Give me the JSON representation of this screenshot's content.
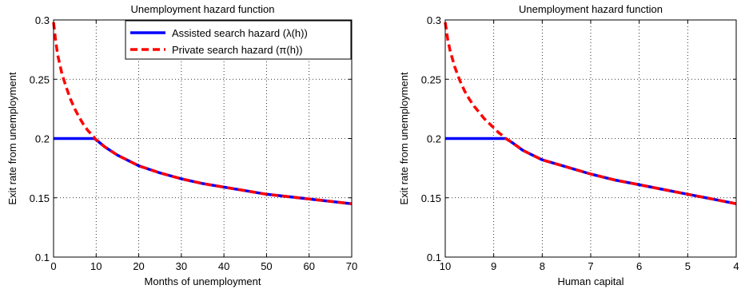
{
  "chart_data": [
    {
      "type": "line",
      "title": "Unemployment hazard function",
      "xlabel": "Months of unemployment",
      "ylabel": "Exit rate from unemployment",
      "xlim": [
        0,
        70
      ],
      "ylim": [
        0.1,
        0.3
      ],
      "xticks": [
        "0",
        "10",
        "20",
        "30",
        "40",
        "50",
        "60",
        "70"
      ],
      "yticks": [
        "0.1",
        "0.15",
        "0.2",
        "0.25",
        "0.3"
      ],
      "x_reversed": false,
      "grid": true,
      "legend_position": "top-right",
      "series": [
        {
          "name": "Assisted search hazard (λ(h))",
          "color": "#0000ff",
          "style": "solid",
          "x": [
            0,
            2,
            4,
            6,
            8,
            9.5,
            10,
            12,
            15,
            20,
            25,
            30,
            35,
            40,
            45,
            50,
            55,
            60,
            65,
            70
          ],
          "y": [
            0.2,
            0.2,
            0.2,
            0.2,
            0.2,
            0.2,
            0.199,
            0.193,
            0.186,
            0.177,
            0.171,
            0.166,
            0.162,
            0.159,
            0.156,
            0.153,
            0.151,
            0.149,
            0.147,
            0.145
          ]
        },
        {
          "name": "Private search hazard (π(h))",
          "color": "#ff0000",
          "style": "dashed",
          "x": [
            0,
            0.5,
            1,
            2,
            3,
            4,
            5,
            6,
            7,
            8,
            9,
            10,
            12,
            15,
            20,
            25,
            30,
            35,
            40,
            45,
            50,
            55,
            60,
            65,
            70
          ],
          "y": [
            0.298,
            0.282,
            0.27,
            0.254,
            0.243,
            0.233,
            0.225,
            0.218,
            0.212,
            0.207,
            0.203,
            0.199,
            0.193,
            0.186,
            0.177,
            0.171,
            0.166,
            0.162,
            0.159,
            0.156,
            0.153,
            0.151,
            0.149,
            0.147,
            0.145
          ]
        }
      ]
    },
    {
      "type": "line",
      "title": "Unemployment hazard function",
      "xlabel": "Human capital",
      "ylabel": "Exit rate from unemployment",
      "xlim": [
        10,
        4
      ],
      "ylim": [
        0.1,
        0.3
      ],
      "xticks": [
        "10",
        "9",
        "8",
        "7",
        "6",
        "5",
        "4"
      ],
      "yticks": [
        "0.1",
        "0.15",
        "0.2",
        "0.25",
        "0.3"
      ],
      "x_reversed": true,
      "grid": true,
      "legend_position": "none",
      "series": [
        {
          "name": "Assisted search hazard (λ(h))",
          "color": "#0000ff",
          "style": "solid",
          "x": [
            10,
            9.8,
            9.5,
            9.2,
            9.0,
            8.8,
            8.75,
            8.6,
            8.4,
            8.2,
            8.0,
            7.5,
            7.0,
            6.5,
            6.0,
            5.5,
            5.0,
            4.5,
            4.0
          ],
          "y": [
            0.2,
            0.2,
            0.2,
            0.2,
            0.2,
            0.2,
            0.2,
            0.196,
            0.19,
            0.186,
            0.182,
            0.176,
            0.17,
            0.165,
            0.161,
            0.157,
            0.153,
            0.149,
            0.145
          ]
        },
        {
          "name": "Private search hazard (π(h))",
          "color": "#ff0000",
          "style": "dashed",
          "x": [
            10,
            9.95,
            9.9,
            9.8,
            9.7,
            9.6,
            9.5,
            9.4,
            9.3,
            9.2,
            9.1,
            9.0,
            8.9,
            8.8,
            8.75,
            8.6,
            8.4,
            8.2,
            8.0,
            7.5,
            7.0,
            6.5,
            6.0,
            5.5,
            5.0,
            4.5,
            4.0
          ],
          "y": [
            0.298,
            0.284,
            0.274,
            0.26,
            0.249,
            0.24,
            0.233,
            0.227,
            0.222,
            0.217,
            0.213,
            0.209,
            0.205,
            0.202,
            0.2,
            0.196,
            0.19,
            0.186,
            0.182,
            0.176,
            0.17,
            0.165,
            0.161,
            0.157,
            0.153,
            0.149,
            0.145
          ]
        }
      ]
    }
  ]
}
